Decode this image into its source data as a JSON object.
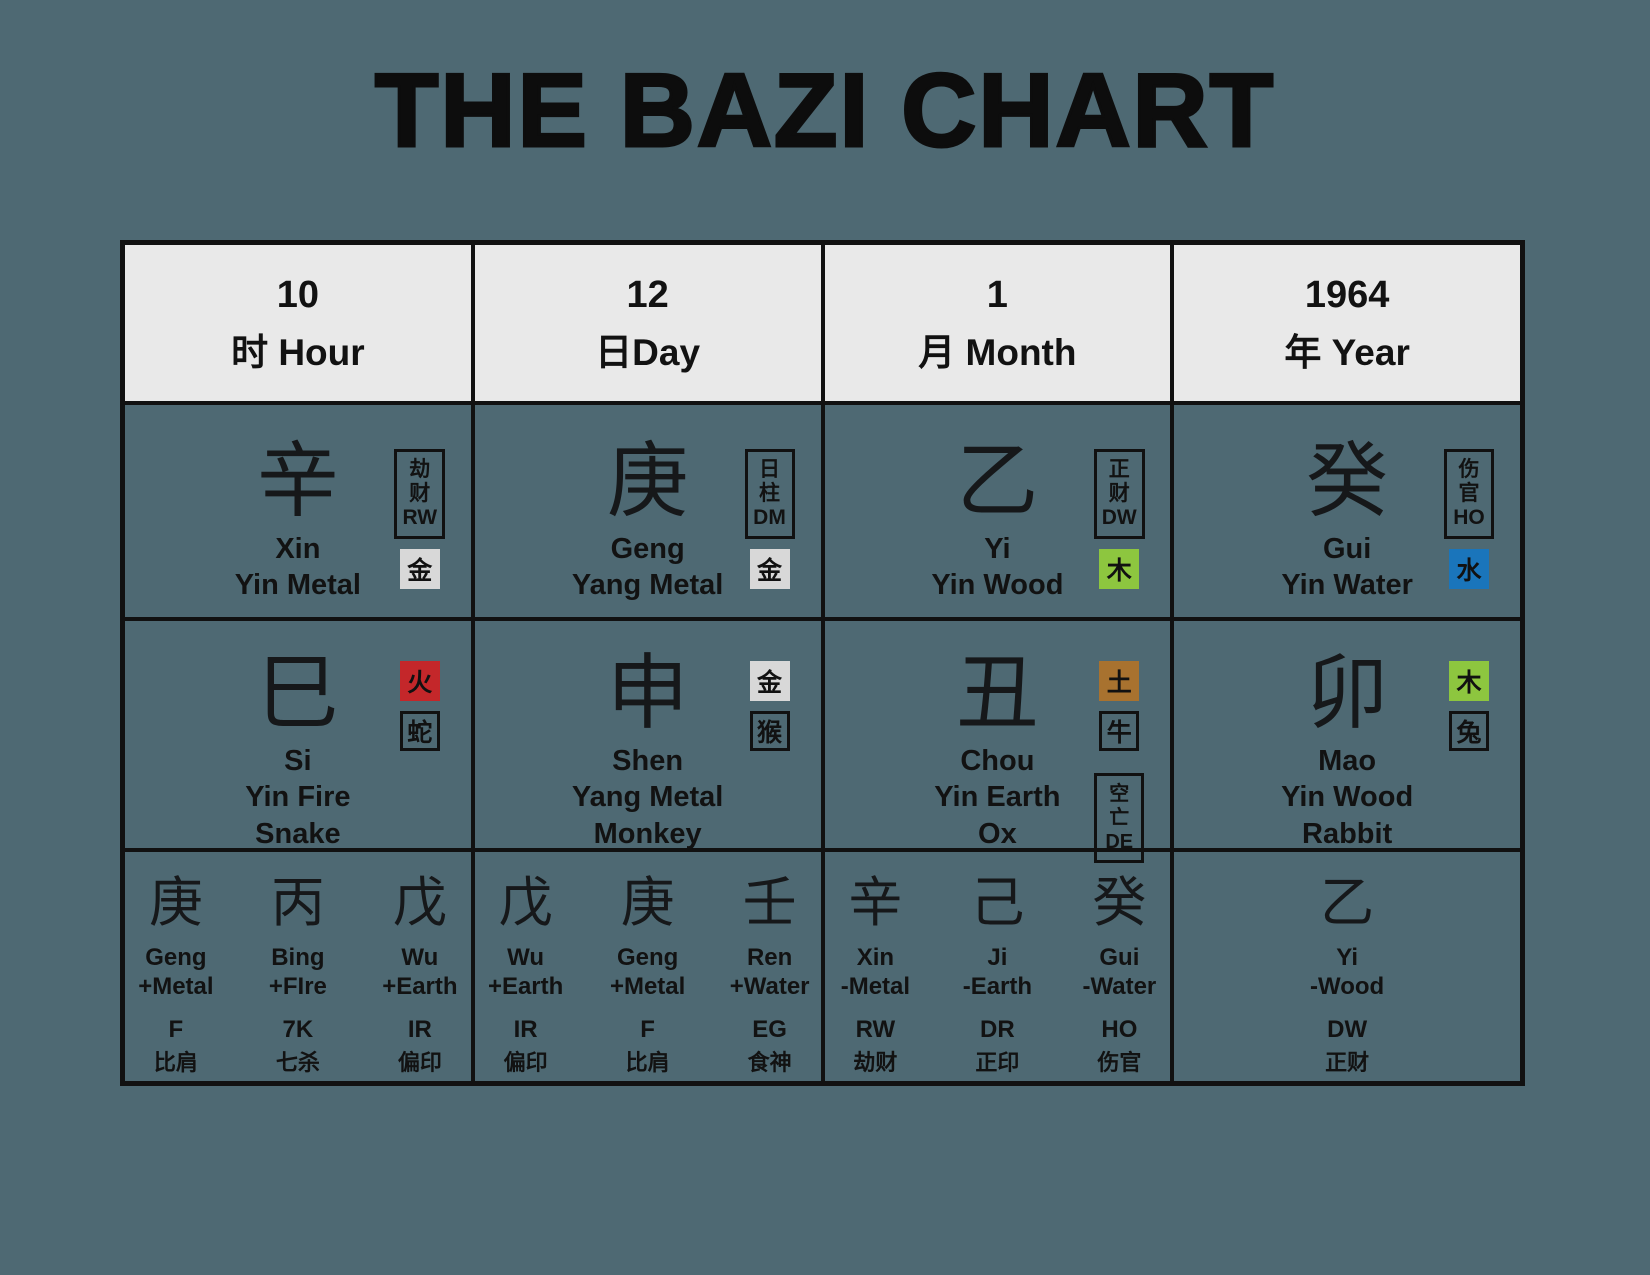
{
  "title": "THE BAZI CHART",
  "colors": {
    "background": "#4e6973",
    "header_bg": "#e9e9e9",
    "border": "#111111",
    "metal_badge": "#d8d8d8",
    "wood_badge": "#8dc63f",
    "water_badge": "#1a75bb",
    "fire_badge": "#c4272a",
    "earth_badge": "#a8722f"
  },
  "pillars": [
    {
      "key": "hour",
      "header": {
        "value": "10",
        "label": "时 Hour"
      },
      "stem": {
        "char": "辛",
        "name": "Xin",
        "polarity": "Yin Metal",
        "god": {
          "l1": "劫",
          "l2": "财",
          "code": "RW"
        },
        "element": {
          "char": "金",
          "key": "metal"
        }
      },
      "branch": {
        "char": "巳",
        "name": "Si",
        "element_text": "Yin Fire",
        "animal": "Snake",
        "element": {
          "char": "火",
          "key": "fire"
        },
        "animal_char": "蛇"
      },
      "hidden": [
        {
          "char": "庚",
          "name": "Geng",
          "element": "+Metal",
          "code": "F",
          "cn": "比肩"
        },
        {
          "char": "丙",
          "name": "Bing",
          "element": "+FIre",
          "code": "7K",
          "cn": "七杀"
        },
        {
          "char": "戊",
          "name": "Wu",
          "element": "+Earth",
          "code": "IR",
          "cn": "偏印"
        }
      ]
    },
    {
      "key": "day",
      "header": {
        "value": "12",
        "label": "日Day"
      },
      "stem": {
        "char": "庚",
        "name": "Geng",
        "polarity": "Yang Metal",
        "god": {
          "l1": "日",
          "l2": "柱",
          "code": "DM"
        },
        "element": {
          "char": "金",
          "key": "metal"
        }
      },
      "branch": {
        "char": "申",
        "name": "Shen",
        "element_text": "Yang Metal",
        "animal": "Monkey",
        "element": {
          "char": "金",
          "key": "metal"
        },
        "animal_char": "猴"
      },
      "hidden": [
        {
          "char": "戊",
          "name": "Wu",
          "element": "+Earth",
          "code": "IR",
          "cn": "偏印"
        },
        {
          "char": "庚",
          "name": "Geng",
          "element": "+Metal",
          "code": "F",
          "cn": "比肩"
        },
        {
          "char": "壬",
          "name": "Ren",
          "element": "+Water",
          "code": "EG",
          "cn": "食神"
        }
      ]
    },
    {
      "key": "month",
      "header": {
        "value": "1",
        "label": "月 Month"
      },
      "stem": {
        "char": "乙",
        "name": "Yi",
        "polarity": "Yin Wood",
        "god": {
          "l1": "正",
          "l2": "财",
          "code": "DW"
        },
        "element": {
          "char": "木",
          "key": "wood"
        }
      },
      "branch": {
        "char": "丑",
        "name": "Chou",
        "element_text": "Yin Earth",
        "animal": "Ox",
        "element": {
          "char": "土",
          "key": "earth"
        },
        "animal_char": "牛",
        "void": {
          "l1": "空",
          "l2": "亡",
          "code": "DE"
        }
      },
      "hidden": [
        {
          "char": "辛",
          "name": "Xin",
          "element": "-Metal",
          "code": "RW",
          "cn": "劫财"
        },
        {
          "char": "己",
          "name": "Ji",
          "element": "-Earth",
          "code": "DR",
          "cn": "正印"
        },
        {
          "char": "癸",
          "name": "Gui",
          "element": "-Water",
          "code": "HO",
          "cn": "伤官"
        }
      ]
    },
    {
      "key": "year",
      "header": {
        "value": "1964",
        "label": "年 Year"
      },
      "stem": {
        "char": "癸",
        "name": "Gui",
        "polarity": "Yin Water",
        "god": {
          "l1": "伤",
          "l2": "官",
          "code": "HO"
        },
        "element": {
          "char": "水",
          "key": "water"
        }
      },
      "branch": {
        "char": "卯",
        "name": "Mao",
        "element_text": "Yin Wood",
        "animal": "Rabbit",
        "element": {
          "char": "木",
          "key": "wood"
        },
        "animal_char": "兔"
      },
      "hidden": [
        {
          "char": "乙",
          "name": "Yi",
          "element": "-Wood",
          "code": "DW",
          "cn": "正财"
        }
      ]
    }
  ]
}
